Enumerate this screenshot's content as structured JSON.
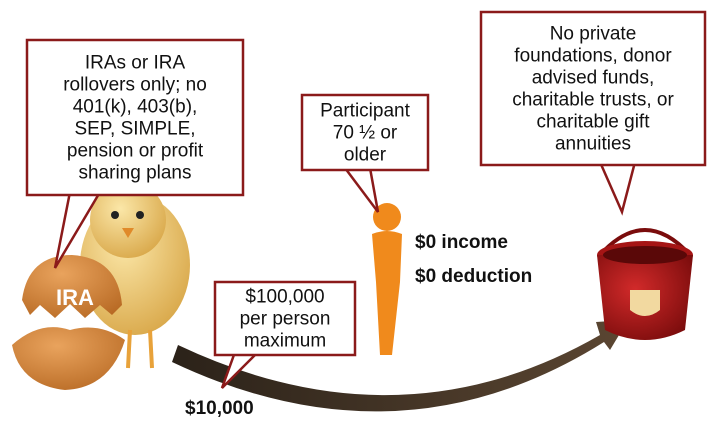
{
  "callouts": [
    {
      "lines": [
        "IRAs or IRA",
        "rollovers only; no",
        "401(k), 403(b),",
        "SEP, SIMPLE,",
        "pension or profit",
        "sharing plans"
      ]
    },
    {
      "lines": [
        "Participant",
        "70 ½ or",
        "older"
      ]
    },
    {
      "lines": [
        "No private",
        "foundations, donor",
        "advised funds,",
        "charitable trusts, or",
        "charitable gift",
        "annuities"
      ]
    },
    {
      "lines": [
        "$100,000",
        "per person",
        "maximum"
      ]
    }
  ],
  "labels": {
    "egg": "IRA",
    "income": "$0 income",
    "deduction": "$0 deduction",
    "amount": "$10,000"
  }
}
